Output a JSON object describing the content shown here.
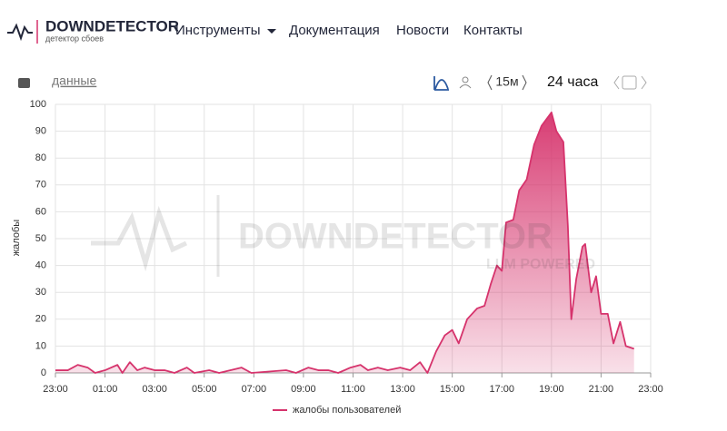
{
  "header": {
    "logo": "DOWNDETECTOR",
    "tagline": "детектор сбоев",
    "nav": [
      "Инструменты",
      "Документация",
      "Новости",
      "Контакты"
    ]
  },
  "toolbar": {
    "data_link": "данные",
    "interval": "15м",
    "range": "24 часа"
  },
  "watermark": [
    "DOWNDETECTOR",
    "LLM POWERED"
  ],
  "chart_data": {
    "type": "line",
    "y_label": "жалобы",
    "x": [
      0,
      0.5,
      0.9,
      1.3,
      1.6,
      2.0,
      2.5,
      2.7,
      3.0,
      3.3,
      3.6,
      4.0,
      4.4,
      4.8,
      5.3,
      5.6,
      6.2,
      6.6,
      7.5,
      7.9,
      9.3,
      9.7,
      10.2,
      10.6,
      11.0,
      11.4,
      11.9,
      12.3,
      12.6,
      13.0,
      13.4,
      13.9,
      14.3,
      14.7,
      15.0,
      15.35,
      15.7,
      16.0,
      16.26,
      16.6,
      17.0,
      17.3,
      17.55,
      17.8,
      18.0,
      18.17,
      18.46,
      18.7,
      19.0,
      19.3,
      19.6,
      20.0,
      20.2,
      20.48,
      20.66,
      20.8,
      21.0,
      21.25,
      21.36,
      21.6,
      21.8,
      22.0,
      22.27,
      22.5,
      22.77,
      23.0,
      23.33
    ],
    "series": [
      {
        "name": "жалобы пользователей",
        "color": "#d6336c",
        "values": [
          1,
          1,
          3,
          2,
          0,
          1,
          3,
          0,
          4,
          1,
          2,
          1,
          1,
          0,
          2,
          0,
          1,
          0,
          2,
          0,
          1,
          0,
          2,
          1,
          1,
          0,
          2,
          3,
          1,
          2,
          1,
          2,
          1,
          4,
          0,
          8,
          14,
          16,
          11,
          20,
          24,
          25,
          33,
          40,
          38,
          56,
          57,
          68,
          72,
          85,
          92,
          97,
          90,
          86,
          55,
          20,
          35,
          47,
          48,
          30,
          36,
          22,
          22,
          11,
          19,
          10,
          9
        ]
      }
    ],
    "xlim": [
      0,
      24
    ],
    "xticks": [
      {
        "value": 0,
        "label": "23:00"
      },
      {
        "value": 2,
        "label": "01:00"
      },
      {
        "value": 4,
        "label": "03:00"
      },
      {
        "value": 6,
        "label": "05:00"
      },
      {
        "value": 8,
        "label": "07:00"
      },
      {
        "value": 10,
        "label": "09:00"
      },
      {
        "value": 12,
        "label": "11:00"
      },
      {
        "value": 14,
        "label": "13:00"
      },
      {
        "value": 16,
        "label": "15:00"
      },
      {
        "value": 18,
        "label": "17:00"
      },
      {
        "value": 20,
        "label": "19:00"
      },
      {
        "value": 22,
        "label": "21:00"
      },
      {
        "value": 24,
        "label": "23:00"
      }
    ],
    "ylim": [
      0,
      100
    ],
    "yticks": [
      0,
      10,
      20,
      30,
      40,
      50,
      60,
      70,
      80,
      90,
      100
    ],
    "grid": true
  }
}
